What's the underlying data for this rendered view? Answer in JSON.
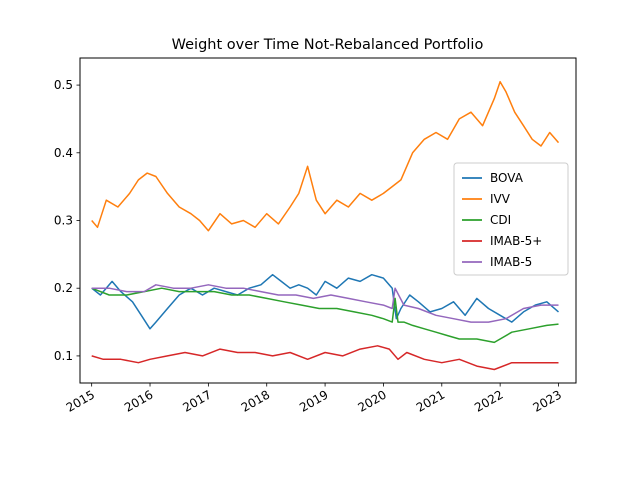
{
  "chart_data": {
    "type": "line",
    "title": "Weight over Time Not-Rebalanced Portfolio",
    "xlabel": "",
    "ylabel": "",
    "xlim": [
      2014.8,
      2023.3
    ],
    "ylim": [
      0.06,
      0.54
    ],
    "x_ticks": [
      2015,
      2016,
      2017,
      2018,
      2019,
      2020,
      2021,
      2022,
      2023
    ],
    "x_tick_labels": [
      "2015",
      "2016",
      "2017",
      "2018",
      "2019",
      "2020",
      "2021",
      "2022",
      "2023"
    ],
    "y_ticks": [
      0.1,
      0.2,
      0.3,
      0.4,
      0.5
    ],
    "y_tick_labels": [
      "0.1",
      "0.2",
      "0.3",
      "0.4",
      "0.5"
    ],
    "grid": false,
    "legend_position": "center-right",
    "series": [
      {
        "name": "BOVA",
        "color": "#1f77b4",
        "x": [
          2015.0,
          2015.15,
          2015.35,
          2015.5,
          2015.7,
          2015.85,
          2016.0,
          2016.1,
          2016.3,
          2016.5,
          2016.7,
          2016.9,
          2017.1,
          2017.3,
          2017.5,
          2017.7,
          2017.9,
          2018.1,
          2018.25,
          2018.4,
          2018.55,
          2018.7,
          2018.85,
          2019.0,
          2019.2,
          2019.4,
          2019.6,
          2019.8,
          2020.0,
          2020.15,
          2020.22,
          2020.3,
          2020.45,
          2020.6,
          2020.8,
          2021.0,
          2021.2,
          2021.4,
          2021.6,
          2021.8,
          2022.0,
          2022.2,
          2022.4,
          2022.6,
          2022.8,
          2023.0
        ],
        "values": [
          0.2,
          0.19,
          0.21,
          0.195,
          0.18,
          0.16,
          0.14,
          0.15,
          0.17,
          0.19,
          0.2,
          0.19,
          0.2,
          0.195,
          0.19,
          0.2,
          0.205,
          0.22,
          0.21,
          0.2,
          0.205,
          0.2,
          0.19,
          0.21,
          0.2,
          0.215,
          0.21,
          0.22,
          0.215,
          0.2,
          0.155,
          0.17,
          0.19,
          0.18,
          0.165,
          0.17,
          0.18,
          0.16,
          0.185,
          0.17,
          0.16,
          0.15,
          0.165,
          0.175,
          0.18,
          0.165
        ]
      },
      {
        "name": "IVV",
        "color": "#ff7f0e",
        "x": [
          2015.0,
          2015.1,
          2015.25,
          2015.45,
          2015.65,
          2015.8,
          2015.95,
          2016.1,
          2016.3,
          2016.5,
          2016.7,
          2016.85,
          2017.0,
          2017.2,
          2017.4,
          2017.6,
          2017.8,
          2018.0,
          2018.2,
          2018.4,
          2018.55,
          2018.7,
          2018.85,
          2019.0,
          2019.2,
          2019.4,
          2019.6,
          2019.8,
          2020.0,
          2020.15,
          2020.3,
          2020.5,
          2020.7,
          2020.9,
          2021.1,
          2021.3,
          2021.5,
          2021.7,
          2021.9,
          2022.0,
          2022.1,
          2022.25,
          2022.4,
          2022.55,
          2022.7,
          2022.85,
          2023.0
        ],
        "values": [
          0.3,
          0.29,
          0.33,
          0.32,
          0.34,
          0.36,
          0.37,
          0.365,
          0.34,
          0.32,
          0.31,
          0.3,
          0.285,
          0.31,
          0.295,
          0.3,
          0.29,
          0.31,
          0.295,
          0.32,
          0.34,
          0.38,
          0.33,
          0.31,
          0.33,
          0.32,
          0.34,
          0.33,
          0.34,
          0.35,
          0.36,
          0.4,
          0.42,
          0.43,
          0.42,
          0.45,
          0.46,
          0.44,
          0.48,
          0.505,
          0.49,
          0.46,
          0.44,
          0.42,
          0.41,
          0.43,
          0.415
        ]
      },
      {
        "name": "CDI",
        "color": "#2ca02c",
        "x": [
          2015.0,
          2015.3,
          2015.6,
          2015.9,
          2016.2,
          2016.5,
          2016.8,
          2017.1,
          2017.4,
          2017.7,
          2018.0,
          2018.3,
          2018.6,
          2018.9,
          2019.2,
          2019.5,
          2019.8,
          2020.0,
          2020.15,
          2020.2,
          2020.25,
          2020.35,
          2020.5,
          2020.7,
          2020.9,
          2021.1,
          2021.3,
          2021.6,
          2021.9,
          2022.2,
          2022.5,
          2022.8,
          2023.0
        ],
        "values": [
          0.2,
          0.19,
          0.19,
          0.195,
          0.2,
          0.195,
          0.195,
          0.195,
          0.19,
          0.19,
          0.185,
          0.18,
          0.175,
          0.17,
          0.17,
          0.165,
          0.16,
          0.155,
          0.15,
          0.185,
          0.15,
          0.15,
          0.145,
          0.14,
          0.135,
          0.13,
          0.125,
          0.125,
          0.12,
          0.135,
          0.14,
          0.145,
          0.147
        ]
      },
      {
        "name": "IMAB-5+",
        "color": "#d62728",
        "x": [
          2015.0,
          2015.2,
          2015.5,
          2015.8,
          2016.0,
          2016.3,
          2016.6,
          2016.9,
          2017.2,
          2017.5,
          2017.8,
          2018.1,
          2018.4,
          2018.7,
          2019.0,
          2019.3,
          2019.6,
          2019.9,
          2020.1,
          2020.25,
          2020.4,
          2020.7,
          2021.0,
          2021.3,
          2021.6,
          2021.9,
          2022.2,
          2022.5,
          2022.8,
          2023.0
        ],
        "values": [
          0.1,
          0.095,
          0.095,
          0.09,
          0.095,
          0.1,
          0.105,
          0.1,
          0.11,
          0.105,
          0.105,
          0.1,
          0.105,
          0.095,
          0.105,
          0.1,
          0.11,
          0.115,
          0.11,
          0.095,
          0.105,
          0.095,
          0.09,
          0.095,
          0.085,
          0.08,
          0.09,
          0.09,
          0.09,
          0.09
        ]
      },
      {
        "name": "IMAB-5",
        "color": "#9467bd",
        "x": [
          2015.0,
          2015.3,
          2015.6,
          2015.9,
          2016.1,
          2016.4,
          2016.7,
          2017.0,
          2017.3,
          2017.6,
          2017.9,
          2018.2,
          2018.5,
          2018.8,
          2019.1,
          2019.4,
          2019.7,
          2020.0,
          2020.15,
          2020.2,
          2020.35,
          2020.6,
          2020.9,
          2021.2,
          2021.5,
          2021.8,
          2022.1,
          2022.4,
          2022.7,
          2023.0
        ],
        "values": [
          0.2,
          0.2,
          0.195,
          0.195,
          0.205,
          0.2,
          0.2,
          0.205,
          0.2,
          0.2,
          0.195,
          0.19,
          0.19,
          0.185,
          0.19,
          0.185,
          0.18,
          0.175,
          0.17,
          0.2,
          0.175,
          0.17,
          0.16,
          0.155,
          0.15,
          0.15,
          0.155,
          0.17,
          0.175,
          0.175
        ]
      }
    ]
  }
}
